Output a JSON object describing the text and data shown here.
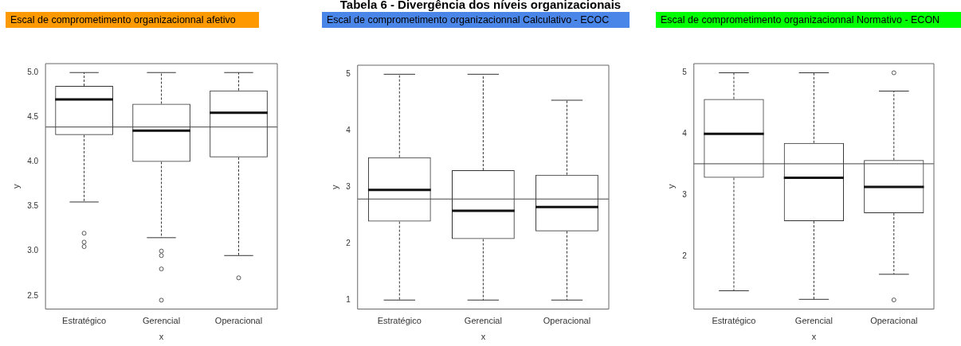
{
  "chart_data": [
    {
      "type": "box",
      "title": "Escal de comprometimento organizacionnal afetivo",
      "xlabel": "x",
      "ylabel": "y",
      "categories": [
        "Estratégico",
        "Gerencial",
        "Operacional"
      ],
      "boxes": [
        {
          "low": 3.55,
          "q1": 4.3,
          "median": 4.7,
          "q3": 4.85,
          "high": 5.0,
          "outliers": [
            3.2,
            3.1,
            3.05
          ]
        },
        {
          "low": 3.15,
          "q1": 4.0,
          "median": 4.35,
          "q3": 4.65,
          "high": 5.0,
          "outliers": [
            3.0,
            2.95,
            2.8,
            2.45
          ]
        },
        {
          "low": 2.95,
          "q1": 4.05,
          "median": 4.55,
          "q3": 4.8,
          "high": 5.0,
          "outliers": [
            2.7
          ]
        }
      ],
      "ylim": [
        2.35,
        5.1
      ],
      "yticks": [
        {
          "value": 2.5,
          "label": "2.5"
        },
        {
          "value": 3,
          "label": "3.0"
        },
        {
          "value": 3.5,
          "label": "3.5"
        },
        {
          "value": 4,
          "label": "4.0"
        },
        {
          "value": 4.5,
          "label": "4.5"
        },
        {
          "value": 5,
          "label": "5.0"
        }
      ],
      "ref_lines": [
        {
          "axis": "y",
          "value": 4.39
        }
      ]
    },
    {
      "type": "box",
      "title": "Escal de comprometimento organizacionnal Calculativo - ECOC",
      "xlabel": "x",
      "ylabel": "y",
      "categories": [
        "Estratégico",
        "Gerencial",
        "Operacional"
      ],
      "annotations": [
        "Tabela 6 - Divergência dos níveis organizacionais"
      ],
      "boxes": [
        {
          "low": 1,
          "q1": 2.39,
          "median": 2.95,
          "q3": 3.53,
          "high": 5
        },
        {
          "low": 1,
          "q1": 2.08,
          "median": 2.58,
          "q3": 3.3,
          "high": 5
        },
        {
          "low": 1,
          "q1": 2.22,
          "median": 2.65,
          "q3": 3.22,
          "high": 4.54
        }
      ],
      "ylim": [
        0.84,
        5.16
      ],
      "yticks": [
        1,
        2,
        3,
        4,
        5
      ],
      "ref_lines": [
        {
          "axis": "y",
          "value": 2.79
        }
      ]
    },
    {
      "type": "box",
      "title": "Escal de comprometimento organizacionnal Normativo - ECON",
      "xlabel": "x",
      "ylabel": "y",
      "categories": [
        "Estratégico",
        "Gerencial",
        "Operacional"
      ],
      "boxes": [
        {
          "low": 1.43,
          "q1": 3.28,
          "median": 4.0,
          "q3": 4.57,
          "high": 5
        },
        {
          "low": 1.29,
          "q1": 2.57,
          "median": 3.28,
          "q3": 3.85,
          "high": 5
        },
        {
          "low": 1.7,
          "q1": 2.7,
          "median": 3.13,
          "q3": 3.57,
          "high": 4.7,
          "outliers": [
            5.0,
            1.28
          ]
        }
      ],
      "ylim": [
        1.13,
        5.15
      ],
      "yticks": [
        2,
        3,
        4,
        5
      ],
      "ref_lines": [
        {
          "axis": "y",
          "value": 3.51
        }
      ]
    }
  ]
}
